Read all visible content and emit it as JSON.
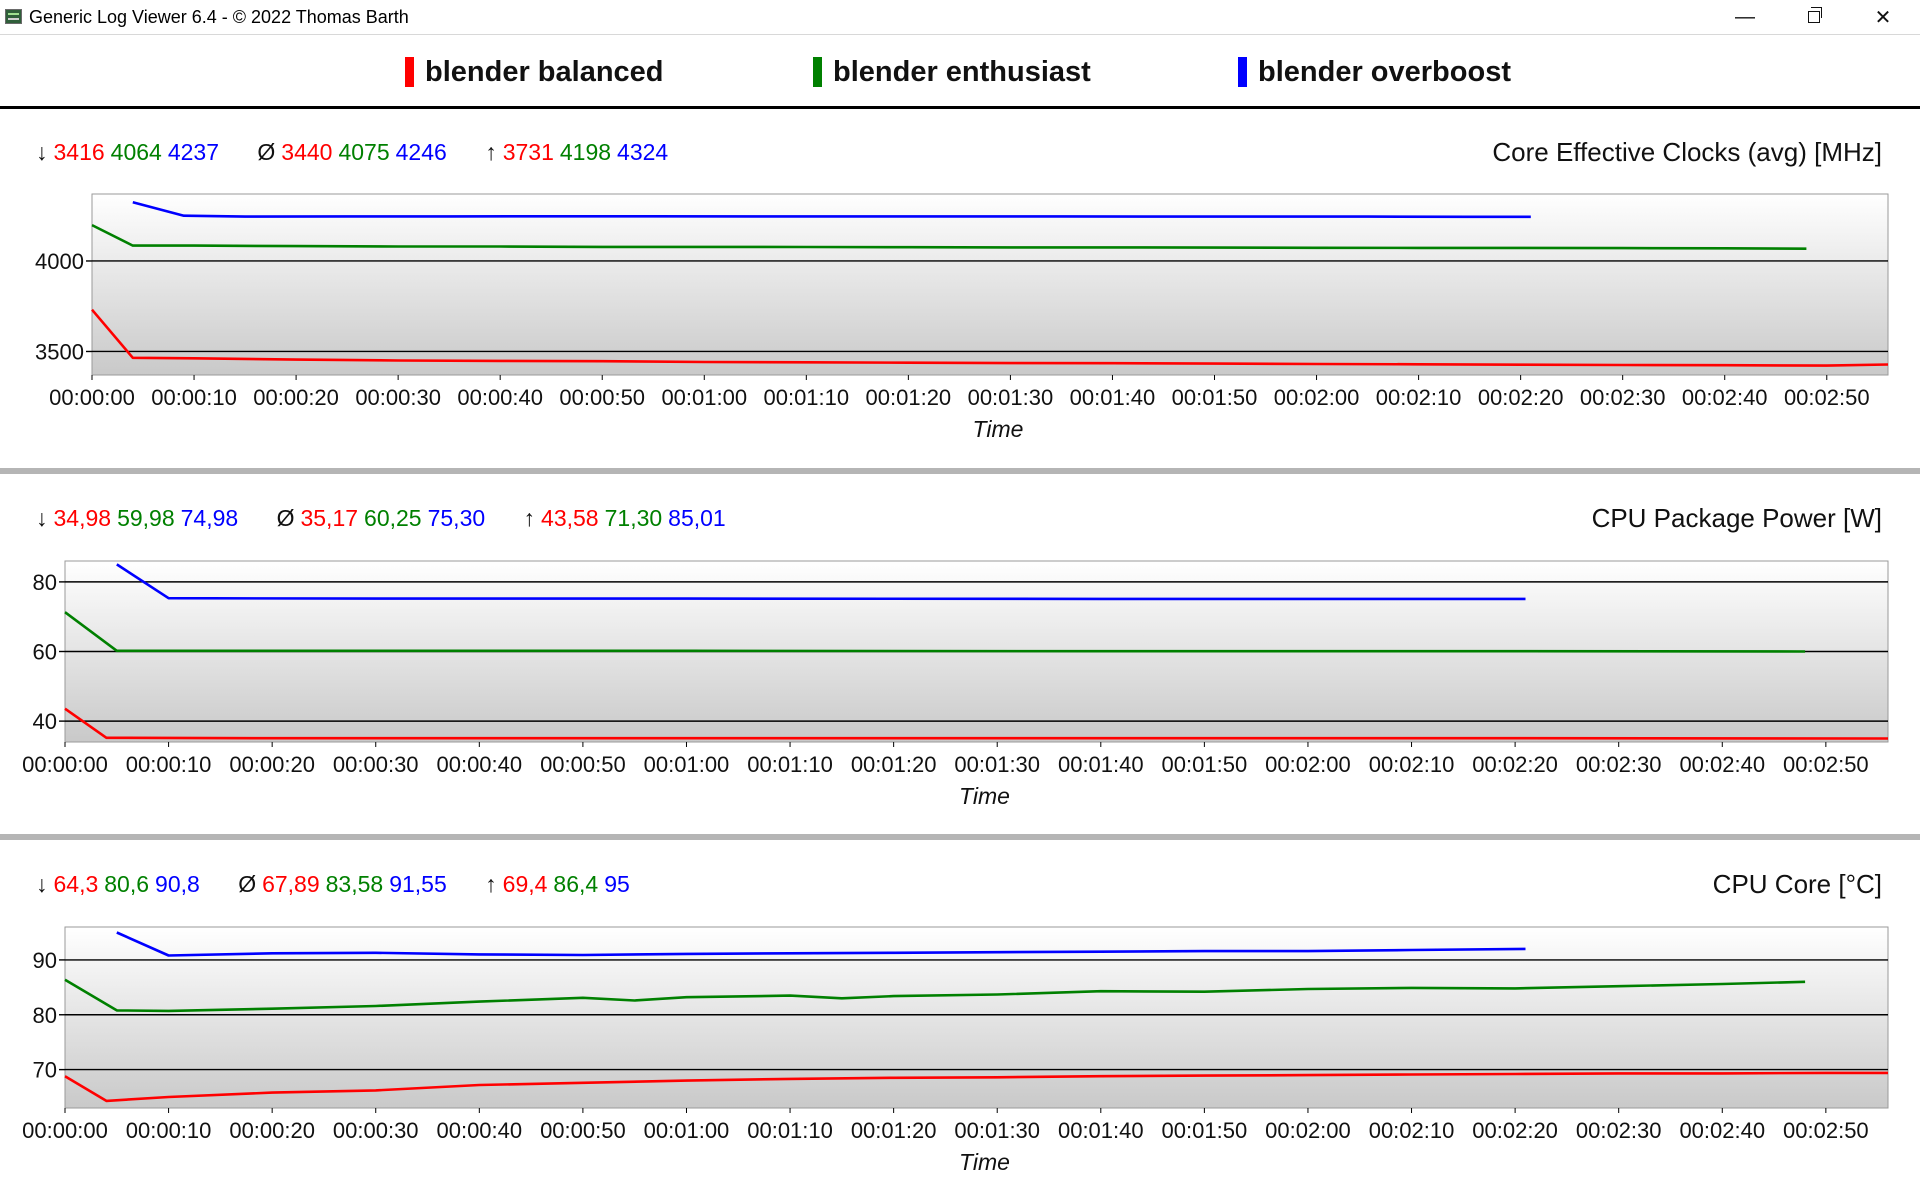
{
  "window": {
    "title": "Generic Log Viewer 6.4 - © 2022 Thomas Barth",
    "minimize_glyph": "—",
    "close_glyph": "✕"
  },
  "legend": [
    {
      "label": "blender balanced",
      "color": "#ff0000"
    },
    {
      "label": "blender enthusiast",
      "color": "#008000"
    },
    {
      "label": "blender overboost",
      "color": "#0000ff"
    }
  ],
  "colors": {
    "balanced": "#ff0000",
    "enthusiast": "#008000",
    "overboost": "#0000ff"
  },
  "icons": {
    "app": "chart-icon",
    "minimize": "minimize-icon",
    "maximize": "restore-icon",
    "close": "close-icon"
  },
  "charts": [
    {
      "title": "Core Effective Clocks (avg) [MHz]",
      "stats": {
        "min_symbol": "↓",
        "avg_symbol": "Ø",
        "max_symbol": "↑",
        "min": [
          "3416",
          "4064",
          "4237"
        ],
        "avg": [
          "3440",
          "4075",
          "4246"
        ],
        "max": [
          "3731",
          "4198",
          "4324"
        ]
      }
    },
    {
      "title": "CPU Package Power [W]",
      "stats": {
        "min_symbol": "↓",
        "avg_symbol": "Ø",
        "max_symbol": "↑",
        "min": [
          "34,98",
          "59,98",
          "74,98"
        ],
        "avg": [
          "35,17",
          "60,25",
          "75,30"
        ],
        "max": [
          "43,58",
          "71,30",
          "85,01"
        ]
      }
    },
    {
      "title": "CPU Core [°C]",
      "stats": {
        "min_symbol": "↓",
        "avg_symbol": "Ø",
        "max_symbol": "↑",
        "min": [
          "64,3",
          "80,6",
          "90,8"
        ],
        "avg": [
          "67,89",
          "83,58",
          "91,55"
        ],
        "max": [
          "69,4",
          "86,4",
          "95"
        ]
      }
    }
  ],
  "chart_data": [
    {
      "type": "line",
      "title": "Core Effective Clocks (avg) [MHz]",
      "xlabel": "Time",
      "ylabel": "",
      "xlim": [
        0,
        176
      ],
      "ylim": [
        3370,
        4370
      ],
      "yticks": [
        3500,
        4000
      ],
      "xticks": [
        "00:00:00",
        "00:00:10",
        "00:00:20",
        "00:00:30",
        "00:00:40",
        "00:00:50",
        "00:01:00",
        "00:01:10",
        "00:01:20",
        "00:01:30",
        "00:01:40",
        "00:01:50",
        "00:02:00",
        "00:02:10",
        "00:02:20",
        "00:02:30",
        "00:02:40",
        "00:02:50"
      ],
      "grid": "horizontal",
      "series": [
        {
          "name": "blender balanced",
          "color": "#ff0000",
          "x": [
            0,
            4,
            10,
            20,
            30,
            40,
            50,
            60,
            70,
            80,
            90,
            100,
            110,
            120,
            130,
            140,
            150,
            160,
            170,
            176
          ],
          "y": [
            3731,
            3465,
            3462,
            3455,
            3450,
            3448,
            3446,
            3442,
            3440,
            3438,
            3436,
            3435,
            3433,
            3431,
            3429,
            3427,
            3425,
            3424,
            3422,
            3428
          ]
        },
        {
          "name": "blender enthusiast",
          "color": "#008000",
          "x": [
            0,
            4,
            10,
            20,
            30,
            40,
            50,
            60,
            70,
            80,
            90,
            100,
            110,
            120,
            130,
            140,
            150,
            160,
            168
          ],
          "y": [
            4198,
            4085,
            4085,
            4082,
            4080,
            4080,
            4078,
            4078,
            4077,
            4076,
            4075,
            4075,
            4074,
            4073,
            4072,
            4072,
            4071,
            4070,
            4068
          ]
        },
        {
          "name": "blender overboost",
          "color": "#0000ff",
          "x": [
            4,
            9,
            15,
            25,
            35,
            45,
            55,
            65,
            75,
            85,
            95,
            105,
            115,
            125,
            135,
            141
          ],
          "y": [
            4324,
            4250,
            4245,
            4246,
            4246,
            4247,
            4247,
            4246,
            4246,
            4246,
            4246,
            4245,
            4245,
            4245,
            4244,
            4244
          ]
        }
      ]
    },
    {
      "type": "line",
      "title": "CPU Package Power [W]",
      "xlabel": "Time",
      "ylabel": "",
      "xlim": [
        0,
        176
      ],
      "ylim": [
        34,
        86
      ],
      "yticks": [
        40,
        60,
        80
      ],
      "xticks": [
        "00:00:00",
        "00:00:10",
        "00:00:20",
        "00:00:30",
        "00:00:40",
        "00:00:50",
        "00:01:00",
        "00:01:10",
        "00:01:20",
        "00:01:30",
        "00:01:40",
        "00:01:50",
        "00:02:00",
        "00:02:10",
        "00:02:20",
        "00:02:30",
        "00:02:40",
        "00:02:50"
      ],
      "grid": "horizontal",
      "series": [
        {
          "name": "blender balanced",
          "color": "#ff0000",
          "x": [
            0,
            4,
            20,
            60,
            100,
            140,
            176
          ],
          "y": [
            43.58,
            35.2,
            35.1,
            35.1,
            35.1,
            35.1,
            35.0
          ]
        },
        {
          "name": "blender enthusiast",
          "color": "#008000",
          "x": [
            0,
            5,
            20,
            60,
            100,
            140,
            168
          ],
          "y": [
            71.3,
            60.2,
            60.2,
            60.2,
            60.1,
            60.1,
            60.0
          ]
        },
        {
          "name": "blender overboost",
          "color": "#0000ff",
          "x": [
            5,
            10,
            30,
            60,
            100,
            141
          ],
          "y": [
            85.01,
            75.3,
            75.2,
            75.2,
            75.1,
            75.1
          ]
        }
      ]
    },
    {
      "type": "line",
      "title": "CPU Core [°C]",
      "xlabel": "Time",
      "ylabel": "",
      "xlim": [
        0,
        176
      ],
      "ylim": [
        63,
        96
      ],
      "yticks": [
        70,
        80,
        90
      ],
      "xticks": [
        "00:00:00",
        "00:00:10",
        "00:00:20",
        "00:00:30",
        "00:00:40",
        "00:00:50",
        "00:01:00",
        "00:01:10",
        "00:01:20",
        "00:01:30",
        "00:01:40",
        "00:01:50",
        "00:02:00",
        "00:02:10",
        "00:02:20",
        "00:02:30",
        "00:02:40",
        "00:02:50"
      ],
      "grid": "horizontal",
      "series": [
        {
          "name": "blender balanced",
          "color": "#ff0000",
          "x": [
            0,
            4,
            10,
            20,
            30,
            40,
            50,
            60,
            70,
            80,
            90,
            100,
            110,
            120,
            130,
            140,
            150,
            160,
            170,
            176
          ],
          "y": [
            68.8,
            64.3,
            65.0,
            65.8,
            66.2,
            67.2,
            67.6,
            68.0,
            68.3,
            68.5,
            68.6,
            68.8,
            68.9,
            69.0,
            69.1,
            69.2,
            69.3,
            69.3,
            69.4,
            69.4
          ]
        },
        {
          "name": "blender enthusiast",
          "color": "#008000",
          "x": [
            0,
            5,
            10,
            20,
            30,
            40,
            50,
            55,
            60,
            70,
            75,
            80,
            90,
            100,
            110,
            120,
            130,
            140,
            150,
            160,
            168
          ],
          "y": [
            86.4,
            80.8,
            80.7,
            81.1,
            81.6,
            82.4,
            83.1,
            82.6,
            83.2,
            83.5,
            83.0,
            83.4,
            83.7,
            84.3,
            84.2,
            84.7,
            84.9,
            84.8,
            85.2,
            85.6,
            86.0
          ]
        },
        {
          "name": "blender overboost",
          "color": "#0000ff",
          "x": [
            5,
            10,
            20,
            30,
            40,
            50,
            60,
            70,
            80,
            90,
            100,
            110,
            120,
            130,
            141
          ],
          "y": [
            95.0,
            90.8,
            91.2,
            91.3,
            91.0,
            90.9,
            91.1,
            91.2,
            91.3,
            91.4,
            91.5,
            91.6,
            91.6,
            91.8,
            92.0
          ]
        }
      ]
    }
  ]
}
